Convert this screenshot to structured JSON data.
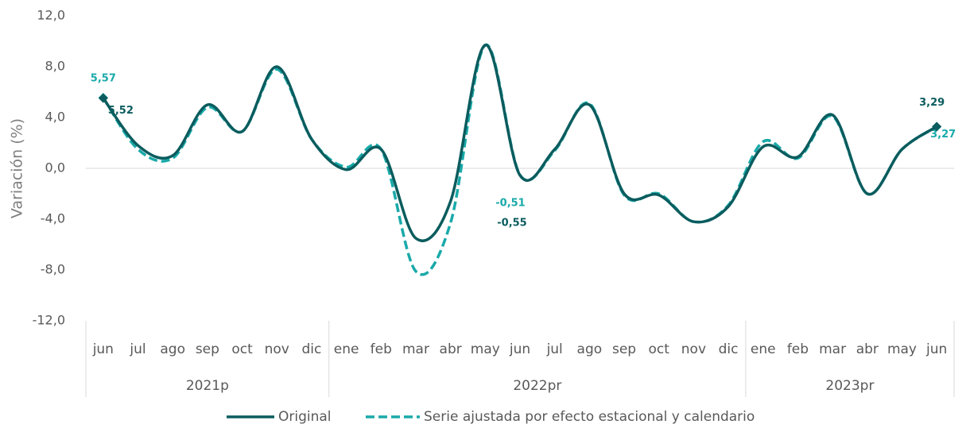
{
  "chart_data": {
    "type": "line",
    "y_label": "Variación (%)",
    "groups": [
      {
        "label": "2021p",
        "categories": [
          "jun",
          "jul",
          "ago",
          "sep",
          "oct",
          "nov",
          "dic"
        ]
      },
      {
        "label": "2022pr",
        "categories": [
          "ene",
          "feb",
          "mar",
          "abr",
          "may",
          "jun",
          "jul",
          "ago",
          "sep",
          "oct",
          "nov",
          "dic"
        ]
      },
      {
        "label": "2023pr",
        "categories": [
          "ene",
          "feb",
          "mar",
          "abr",
          "may",
          "jun"
        ]
      }
    ],
    "series": [
      {
        "name": "Original",
        "color": "#0b5c5e",
        "dash": false,
        "values": [
          5.52,
          1.8,
          1.0,
          5.0,
          2.9,
          8.0,
          2.3,
          -0.1,
          1.5,
          -5.5,
          -2.6,
          9.7,
          -0.55,
          1.5,
          5.0,
          -2.0,
          -2.1,
          -4.2,
          -3.0,
          1.7,
          0.9,
          4.2,
          -2.0,
          1.5,
          3.29
        ],
        "value_labels": [
          "5,52",
          null,
          null,
          null,
          null,
          null,
          null,
          null,
          null,
          null,
          null,
          null,
          "-0,55",
          null,
          null,
          null,
          null,
          null,
          null,
          null,
          null,
          null,
          null,
          null,
          "3,29"
        ]
      },
      {
        "name": "Serie ajustada por efecto estacional y calendario",
        "color": "#1aa9a9",
        "dash": true,
        "values": [
          5.57,
          1.5,
          0.8,
          4.8,
          2.9,
          7.8,
          2.3,
          0.1,
          1.5,
          -8.1,
          -4.3,
          9.7,
          -0.51,
          1.4,
          5.1,
          -2.1,
          -2.0,
          -4.2,
          -2.9,
          2.1,
          0.8,
          4.1,
          -2.0,
          1.5,
          3.27
        ],
        "value_labels": [
          "5,57",
          null,
          null,
          null,
          null,
          null,
          null,
          null,
          null,
          null,
          null,
          null,
          "-0,51",
          null,
          null,
          null,
          null,
          null,
          null,
          null,
          null,
          null,
          null,
          null,
          "3,27"
        ]
      }
    ],
    "ylim": [
      -12,
      12
    ],
    "yticks": [
      {
        "value": -12,
        "label": "-12,0"
      },
      {
        "value": -8,
        "label": "-8,0"
      },
      {
        "value": -4,
        "label": "-4,0"
      },
      {
        "value": 0,
        "label": "0,0"
      },
      {
        "value": 4,
        "label": "4,0"
      },
      {
        "value": 8,
        "label": "8,0"
      },
      {
        "value": 12,
        "label": "12,0"
      }
    ],
    "zero_line": true,
    "legend": "bottom"
  }
}
